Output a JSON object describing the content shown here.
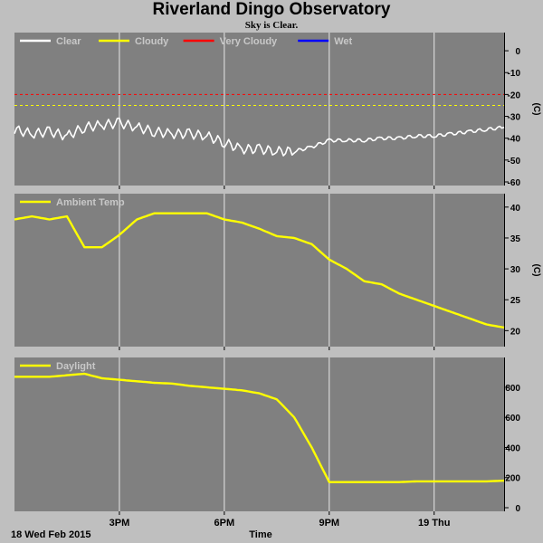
{
  "header": {
    "title": "Riverland Dingo Observatory",
    "subtitle": "Sky is Clear."
  },
  "footer": {
    "date_label": "18 Wed Feb 2015",
    "axis_label": "Time"
  },
  "colors": {
    "panel_bg": "#808080",
    "page_bg": "#bfbfbf",
    "grid": "#e8e8e8",
    "clear": "#ffffff",
    "cloudy": "#ffff00",
    "very_cloudy": "#ff0000",
    "wet": "#0000ff"
  },
  "chart_data": [
    {
      "type": "line",
      "name": "cloud",
      "ylabel": "(C)",
      "ylim": [
        -60,
        5
      ],
      "yticks": [
        0,
        -10,
        -20,
        -30,
        -40,
        -50,
        -60
      ],
      "legend": [
        "Clear",
        "Cloudy",
        "Very Cloudy",
        "Wet"
      ],
      "thresholds": [
        {
          "name": "Very Cloudy",
          "value": -20
        },
        {
          "name": "Cloudy",
          "value": -25
        }
      ],
      "x": [
        12.0,
        12.5,
        13.0,
        13.5,
        14.0,
        14.5,
        15.0,
        15.5,
        16.0,
        16.5,
        17.0,
        17.5,
        18.0,
        18.5,
        19.0,
        19.5,
        20.0,
        20.5,
        21.0,
        21.5,
        22.0,
        22.5,
        23.0,
        23.5,
        24.0,
        24.5,
        25.0,
        25.5,
        26.0
      ],
      "series": [
        {
          "name": "Clear",
          "values": [
            -36,
            -38,
            -37,
            -39,
            -35,
            -34,
            -33,
            -35,
            -37,
            -38,
            -38,
            -39,
            -42,
            -45,
            -45,
            -46,
            -46,
            -44,
            -41,
            -41,
            -41,
            -40,
            -40,
            -39,
            -39,
            -38,
            -37,
            -36,
            -35
          ]
        }
      ]
    },
    {
      "type": "line",
      "name": "ambient",
      "ylabel": "(C)",
      "ylim": [
        18,
        41
      ],
      "yticks": [
        40,
        35,
        30,
        25,
        20
      ],
      "legend": [
        "Ambient Temp"
      ],
      "x": [
        12.0,
        12.5,
        13.0,
        13.5,
        14.0,
        14.5,
        15.0,
        15.5,
        16.0,
        16.5,
        17.0,
        17.5,
        18.0,
        18.5,
        19.0,
        19.5,
        20.0,
        20.5,
        21.0,
        21.5,
        22.0,
        22.5,
        23.0,
        23.5,
        24.0,
        24.5,
        25.0,
        25.5,
        26.0
      ],
      "series": [
        {
          "name": "Ambient Temp",
          "values": [
            38,
            38.5,
            38,
            38.5,
            33.5,
            33.5,
            35.5,
            38,
            39,
            39,
            39,
            39,
            38,
            37.5,
            36.5,
            35.3,
            35,
            34,
            31.5,
            30,
            28,
            27.5,
            26,
            25,
            24,
            23,
            22,
            21,
            20.5
          ]
        }
      ]
    },
    {
      "type": "line",
      "name": "daylight",
      "ylabel": "",
      "ylim": [
        0,
        950
      ],
      "yticks": [
        800,
        600,
        400,
        200,
        0
      ],
      "legend": [
        "Daylight"
      ],
      "x": [
        12.0,
        12.5,
        13.0,
        13.5,
        14.0,
        14.5,
        15.0,
        15.5,
        16.0,
        16.5,
        17.0,
        17.5,
        18.0,
        18.5,
        19.0,
        19.5,
        20.0,
        20.5,
        21.0,
        21.5,
        22.0,
        22.5,
        23.0,
        23.5,
        24.0,
        24.5,
        25.0,
        25.5,
        26.0
      ],
      "series": [
        {
          "name": "Daylight",
          "values": [
            870,
            870,
            870,
            880,
            890,
            860,
            850,
            840,
            830,
            825,
            810,
            800,
            790,
            780,
            760,
            720,
            600,
            400,
            170,
            170,
            170,
            170,
            170,
            175,
            175,
            175,
            175,
            175,
            180
          ]
        }
      ]
    }
  ],
  "x_axis": {
    "ticks": [
      {
        "value": 15,
        "label": "3PM"
      },
      {
        "value": 18,
        "label": "6PM"
      },
      {
        "value": 21,
        "label": "9PM"
      },
      {
        "value": 24,
        "label": "19 Thu"
      }
    ],
    "xlim": [
      12,
      26
    ]
  }
}
